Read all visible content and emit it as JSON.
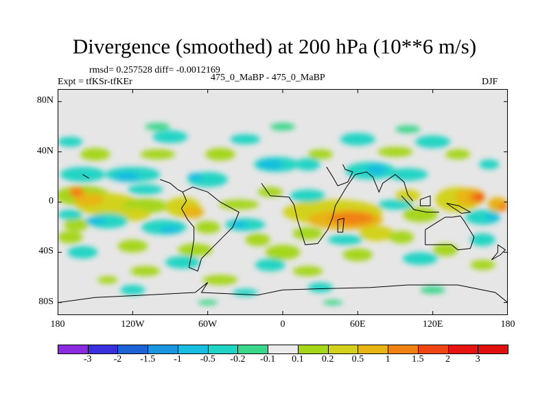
{
  "title": "Divergence (smoothed) at 200 hPa (10**6 m/s)",
  "stats": "rmsd= 0.257528 diff= -0.0012169",
  "experiment": "Expt = tfKSr-tfKEr",
  "comparison": "475_0_MaBP - 475_0_MaBP",
  "season": "DJF",
  "chart_data": {
    "type": "heatmap",
    "variable": "Divergence (smoothed) at 200 hPa",
    "units": "10**6 m/s",
    "x_axis": {
      "range": [
        -180,
        180
      ],
      "ticks": [
        -180,
        -120,
        -60,
        0,
        60,
        120,
        180
      ],
      "tick_labels": [
        "180",
        "120W",
        "60W",
        "0",
        "60E",
        "120E",
        "180"
      ]
    },
    "y_axis": {
      "range": [
        -90,
        90
      ],
      "ticks": [
        80,
        40,
        0,
        -40,
        -80
      ],
      "tick_labels": [
        "80N",
        "40N",
        "0",
        "40S",
        "80S"
      ]
    },
    "colorbar": {
      "labels": [
        "-3",
        "-2",
        "-1.5",
        "-1",
        "-0.5",
        "-0.2",
        "-0.1",
        "0.1",
        "0.2",
        "0.5",
        "1",
        "1.5",
        "2",
        "3"
      ],
      "colors": [
        "#8a2be2",
        "#3a2fdc",
        "#1e62d8",
        "#1a96e0",
        "#19bde0",
        "#20d4c4",
        "#3ad68a",
        "#ebebeb",
        "#a6d61a",
        "#d2d21c",
        "#e8b414",
        "#f08214",
        "#f04614",
        "#e81414",
        "#e01010"
      ]
    },
    "features": [
      {
        "name": "tropical divergence maximum",
        "lon": 50,
        "lat": -12,
        "level": "1 to 1.5"
      },
      {
        "name": "maritime continent divergence",
        "lon": 150,
        "lat": 0,
        "level": "1 to 2"
      },
      {
        "name": "central Pacific divergence",
        "lon": -150,
        "lat": 2,
        "level": "0.5 to 1.5"
      },
      {
        "name": "South America divergence",
        "lon": -75,
        "lat": -5,
        "level": "0.5 to 1"
      },
      {
        "name": "convergence band",
        "lon": -10,
        "lat": 40,
        "level": "-0.5 to -1"
      }
    ]
  },
  "style": {
    "ocean": "#e6e6e6",
    "coast": "#000000"
  }
}
